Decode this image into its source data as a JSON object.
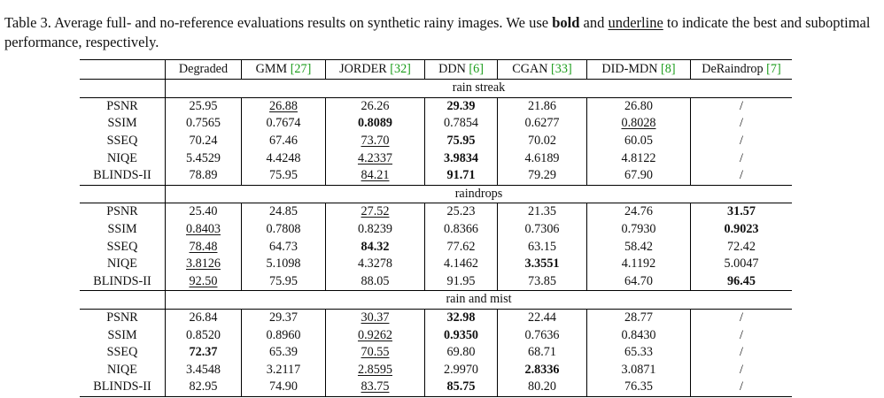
{
  "caption": {
    "prefix": "Table 3. Average full- and no-reference evaluations results on synthetic rainy images. We use ",
    "bold_word": "bold",
    "middle": " and ",
    "underline_word": "underline",
    "suffix": " to indicate the best and suboptimal performance, respectively."
  },
  "columns": [
    {
      "label": "Degraded",
      "cite": ""
    },
    {
      "label": "GMM ",
      "cite": "[27]"
    },
    {
      "label": "JORDER ",
      "cite": "[32]"
    },
    {
      "label": "DDN ",
      "cite": "[6]"
    },
    {
      "label": "CGAN ",
      "cite": "[33]"
    },
    {
      "label": "DID-MDN ",
      "cite": "[8]"
    },
    {
      "label": "DeRaindrop ",
      "cite": "[7]"
    }
  ],
  "sections": [
    {
      "title": "rain streak",
      "rows": [
        {
          "metric": "PSNR",
          "values": [
            "25.95",
            "26.88",
            "26.26",
            "29.39",
            "21.86",
            "26.80",
            "/"
          ],
          "styles": [
            "",
            "u",
            "",
            "b",
            "",
            "",
            ""
          ]
        },
        {
          "metric": "SSIM",
          "values": [
            "0.7565",
            "0.7674",
            "0.8089",
            "0.7854",
            "0.6277",
            "0.8028",
            "/"
          ],
          "styles": [
            "",
            "",
            "b",
            "",
            "",
            "u",
            ""
          ]
        },
        {
          "metric": "SSEQ",
          "values": [
            "70.24",
            "67.46",
            "73.70",
            "75.95",
            "70.02",
            "60.05",
            "/"
          ],
          "styles": [
            "",
            "",
            "u",
            "b",
            "",
            "",
            ""
          ]
        },
        {
          "metric": "NIQE",
          "values": [
            "5.4529",
            "4.4248",
            "4.2337",
            "3.9834",
            "4.6189",
            "4.8122",
            "/"
          ],
          "styles": [
            "",
            "",
            "u",
            "b",
            "",
            "",
            ""
          ]
        },
        {
          "metric": "BLINDS-II",
          "values": [
            "78.89",
            "75.95",
            "84.21",
            "91.71",
            "79.29",
            "67.90",
            "/"
          ],
          "styles": [
            "",
            "",
            "u",
            "b",
            "",
            "",
            ""
          ]
        }
      ]
    },
    {
      "title": "raindrops",
      "rows": [
        {
          "metric": "PSNR",
          "values": [
            "25.40",
            "24.85",
            "27.52",
            "25.23",
            "21.35",
            "24.76",
            "31.57"
          ],
          "styles": [
            "",
            "",
            "u",
            "",
            "",
            "",
            "b"
          ]
        },
        {
          "metric": "SSIM",
          "values": [
            "0.8403",
            "0.7808",
            "0.8239",
            "0.8366",
            "0.7306",
            "0.7930",
            "0.9023"
          ],
          "styles": [
            "u",
            "",
            "",
            "",
            "",
            "",
            "b"
          ]
        },
        {
          "metric": "SSEQ",
          "values": [
            "78.48",
            "64.73",
            "84.32",
            "77.62",
            "63.15",
            "58.42",
            "72.42"
          ],
          "styles": [
            "u",
            "",
            "b",
            "",
            "",
            "",
            ""
          ]
        },
        {
          "metric": "NIQE",
          "values": [
            "3.8126",
            "5.1098",
            "4.3278",
            "4.1462",
            "3.3551",
            "4.1192",
            "5.0047"
          ],
          "styles": [
            "u",
            "",
            "",
            "",
            "b",
            "",
            ""
          ]
        },
        {
          "metric": "BLINDS-II",
          "values": [
            "92.50",
            "75.95",
            "88.05",
            "91.95",
            "73.85",
            "64.70",
            "96.45"
          ],
          "styles": [
            "u",
            "",
            "",
            "",
            "",
            "",
            "b"
          ]
        }
      ]
    },
    {
      "title": "rain and mist",
      "rows": [
        {
          "metric": "PSNR",
          "values": [
            "26.84",
            "29.37",
            "30.37",
            "32.98",
            "22.44",
            "28.77",
            "/"
          ],
          "styles": [
            "",
            "",
            "u",
            "b",
            "",
            "",
            ""
          ]
        },
        {
          "metric": "SSIM",
          "values": [
            "0.8520",
            "0.8960",
            "0.9262",
            "0.9350",
            "0.7636",
            "0.8430",
            "/"
          ],
          "styles": [
            "",
            "",
            "u",
            "b",
            "",
            "",
            ""
          ]
        },
        {
          "metric": "SSEQ",
          "values": [
            "72.37",
            "65.39",
            "70.55",
            "69.80",
            "68.71",
            "65.33",
            "/"
          ],
          "styles": [
            "b",
            "",
            "u",
            "",
            "",
            "",
            ""
          ]
        },
        {
          "metric": "NIQE",
          "values": [
            "3.4548",
            "3.2117",
            "2.8595",
            "2.9970",
            "2.8336",
            "3.0871",
            "/"
          ],
          "styles": [
            "",
            "",
            "u",
            "",
            "b",
            "",
            ""
          ]
        },
        {
          "metric": "BLINDS-II",
          "values": [
            "82.95",
            "74.90",
            "83.75",
            "85.75",
            "80.20",
            "76.35",
            "/"
          ],
          "styles": [
            "",
            "",
            "u",
            "b",
            "",
            "",
            ""
          ]
        }
      ]
    }
  ],
  "colors": {
    "citation": "#1a9c1a",
    "text": "#111111"
  }
}
